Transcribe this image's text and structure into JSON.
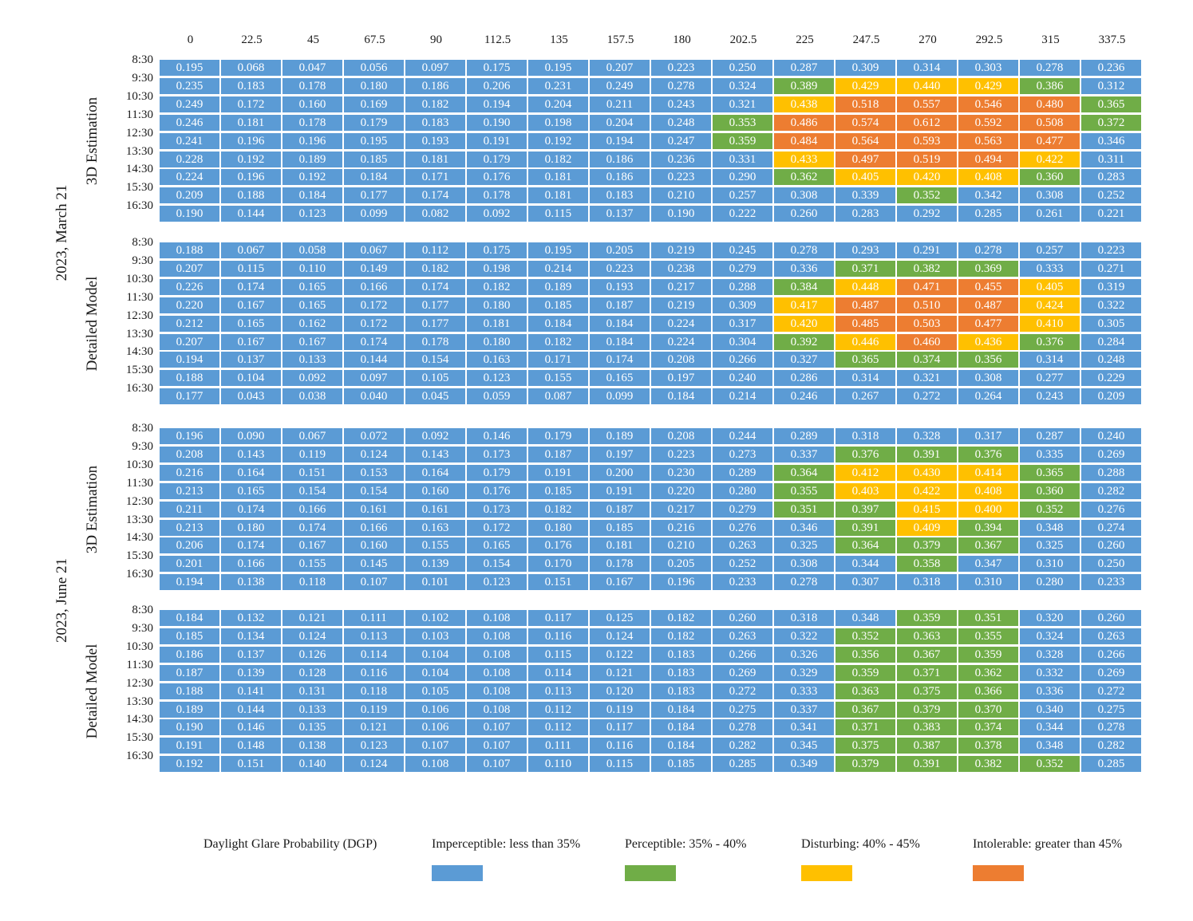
{
  "chart_data": {
    "type": "heatmap",
    "columns": [
      "0",
      "22.5",
      "45",
      "67.5",
      "90",
      "112.5",
      "135",
      "157.5",
      "180",
      "202.5",
      "225",
      "247.5",
      "270",
      "292.5",
      "315",
      "337.5"
    ],
    "rows": [
      "8:30",
      "9:30",
      "10:30",
      "11:30",
      "12:30",
      "13:30",
      "14:30",
      "15:30",
      "16:30"
    ],
    "dates": [
      "2023, March 21",
      "2023, June 21"
    ],
    "blocks": [
      {
        "date": "2023, March 21",
        "method": "3D Estimation",
        "values": [
          [
            "0.195",
            "0.068",
            "0.047",
            "0.056",
            "0.097",
            "0.175",
            "0.195",
            "0.207",
            "0.223",
            "0.250",
            "0.287",
            "0.309",
            "0.314",
            "0.303",
            "0.278",
            "0.236"
          ],
          [
            "0.235",
            "0.183",
            "0.178",
            "0.180",
            "0.186",
            "0.206",
            "0.231",
            "0.249",
            "0.278",
            "0.324",
            "0.389",
            "0.429",
            "0.440",
            "0.429",
            "0.386",
            "0.312"
          ],
          [
            "0.249",
            "0.172",
            "0.160",
            "0.169",
            "0.182",
            "0.194",
            "0.204",
            "0.211",
            "0.243",
            "0.321",
            "0.438",
            "0.518",
            "0.557",
            "0.546",
            "0.480",
            "0.365"
          ],
          [
            "0.246",
            "0.181",
            "0.178",
            "0.179",
            "0.183",
            "0.190",
            "0.198",
            "0.204",
            "0.248",
            "0.353",
            "0.486",
            "0.574",
            "0.612",
            "0.592",
            "0.508",
            "0.372"
          ],
          [
            "0.241",
            "0.196",
            "0.196",
            "0.195",
            "0.193",
            "0.191",
            "0.192",
            "0.194",
            "0.247",
            "0.359",
            "0.484",
            "0.564",
            "0.593",
            "0.563",
            "0.477",
            "0.346"
          ],
          [
            "0.228",
            "0.192",
            "0.189",
            "0.185",
            "0.181",
            "0.179",
            "0.182",
            "0.186",
            "0.236",
            "0.331",
            "0.433",
            "0.497",
            "0.519",
            "0.494",
            "0.422",
            "0.311"
          ],
          [
            "0.224",
            "0.196",
            "0.192",
            "0.184",
            "0.171",
            "0.176",
            "0.181",
            "0.186",
            "0.223",
            "0.290",
            "0.362",
            "0.405",
            "0.420",
            "0.408",
            "0.360",
            "0.283"
          ],
          [
            "0.209",
            "0.188",
            "0.184",
            "0.177",
            "0.174",
            "0.178",
            "0.181",
            "0.183",
            "0.210",
            "0.257",
            "0.308",
            "0.339",
            "0.352",
            "0.342",
            "0.308",
            "0.252"
          ],
          [
            "0.190",
            "0.144",
            "0.123",
            "0.099",
            "0.082",
            "0.092",
            "0.115",
            "0.137",
            "0.190",
            "0.222",
            "0.260",
            "0.283",
            "0.292",
            "0.285",
            "0.261",
            "0.221"
          ]
        ]
      },
      {
        "date": "2023, March 21",
        "method": "Detailed Model",
        "values": [
          [
            "0.188",
            "0.067",
            "0.058",
            "0.067",
            "0.112",
            "0.175",
            "0.195",
            "0.205",
            "0.219",
            "0.245",
            "0.278",
            "0.293",
            "0.291",
            "0.278",
            "0.257",
            "0.223"
          ],
          [
            "0.207",
            "0.115",
            "0.110",
            "0.149",
            "0.182",
            "0.198",
            "0.214",
            "0.223",
            "0.238",
            "0.279",
            "0.336",
            "0.371",
            "0.382",
            "0.369",
            "0.333",
            "0.271"
          ],
          [
            "0.226",
            "0.174",
            "0.165",
            "0.166",
            "0.174",
            "0.182",
            "0.189",
            "0.193",
            "0.217",
            "0.288",
            "0.384",
            "0.448",
            "0.471",
            "0.455",
            "0.405",
            "0.319"
          ],
          [
            "0.220",
            "0.167",
            "0.165",
            "0.172",
            "0.177",
            "0.180",
            "0.185",
            "0.187",
            "0.219",
            "0.309",
            "0.417",
            "0.487",
            "0.510",
            "0.487",
            "0.424",
            "0.322"
          ],
          [
            "0.212",
            "0.165",
            "0.162",
            "0.172",
            "0.177",
            "0.181",
            "0.184",
            "0.184",
            "0.224",
            "0.317",
            "0.420",
            "0.485",
            "0.503",
            "0.477",
            "0.410",
            "0.305"
          ],
          [
            "0.207",
            "0.167",
            "0.167",
            "0.174",
            "0.178",
            "0.180",
            "0.182",
            "0.184",
            "0.224",
            "0.304",
            "0.392",
            "0.446",
            "0.460",
            "0.436",
            "0.376",
            "0.284"
          ],
          [
            "0.194",
            "0.137",
            "0.133",
            "0.144",
            "0.154",
            "0.163",
            "0.171",
            "0.174",
            "0.208",
            "0.266",
            "0.327",
            "0.365",
            "0.374",
            "0.356",
            "0.314",
            "0.248"
          ],
          [
            "0.188",
            "0.104",
            "0.092",
            "0.097",
            "0.105",
            "0.123",
            "0.155",
            "0.165",
            "0.197",
            "0.240",
            "0.286",
            "0.314",
            "0.321",
            "0.308",
            "0.277",
            "0.229"
          ],
          [
            "0.177",
            "0.043",
            "0.038",
            "0.040",
            "0.045",
            "0.059",
            "0.087",
            "0.099",
            "0.184",
            "0.214",
            "0.246",
            "0.267",
            "0.272",
            "0.264",
            "0.243",
            "0.209"
          ]
        ]
      },
      {
        "date": "2023, June 21",
        "method": "3D Estimation",
        "values": [
          [
            "0.196",
            "0.090",
            "0.067",
            "0.072",
            "0.092",
            "0.146",
            "0.179",
            "0.189",
            "0.208",
            "0.244",
            "0.289",
            "0.318",
            "0.328",
            "0.317",
            "0.287",
            "0.240"
          ],
          [
            "0.208",
            "0.143",
            "0.119",
            "0.124",
            "0.143",
            "0.173",
            "0.187",
            "0.197",
            "0.223",
            "0.273",
            "0.337",
            "0.376",
            "0.391",
            "0.376",
            "0.335",
            "0.269"
          ],
          [
            "0.216",
            "0.164",
            "0.151",
            "0.153",
            "0.164",
            "0.179",
            "0.191",
            "0.200",
            "0.230",
            "0.289",
            "0.364",
            "0.412",
            "0.430",
            "0.414",
            "0.365",
            "0.288"
          ],
          [
            "0.213",
            "0.165",
            "0.154",
            "0.154",
            "0.160",
            "0.176",
            "0.185",
            "0.191",
            "0.220",
            "0.280",
            "0.355",
            "0.403",
            "0.422",
            "0.408",
            "0.360",
            "0.282"
          ],
          [
            "0.211",
            "0.174",
            "0.166",
            "0.161",
            "0.161",
            "0.173",
            "0.182",
            "0.187",
            "0.217",
            "0.279",
            "0.351",
            "0.397",
            "0.415",
            "0.400",
            "0.352",
            "0.276"
          ],
          [
            "0.213",
            "0.180",
            "0.174",
            "0.166",
            "0.163",
            "0.172",
            "0.180",
            "0.185",
            "0.216",
            "0.276",
            "0.346",
            "0.391",
            "0.409",
            "0.394",
            "0.348",
            "0.274"
          ],
          [
            "0.206",
            "0.174",
            "0.167",
            "0.160",
            "0.155",
            "0.165",
            "0.176",
            "0.181",
            "0.210",
            "0.263",
            "0.325",
            "0.364",
            "0.379",
            "0.367",
            "0.325",
            "0.260"
          ],
          [
            "0.201",
            "0.166",
            "0.155",
            "0.145",
            "0.139",
            "0.154",
            "0.170",
            "0.178",
            "0.205",
            "0.252",
            "0.308",
            "0.344",
            "0.358",
            "0.347",
            "0.310",
            "0.250"
          ],
          [
            "0.194",
            "0.138",
            "0.118",
            "0.107",
            "0.101",
            "0.123",
            "0.151",
            "0.167",
            "0.196",
            "0.233",
            "0.278",
            "0.307",
            "0.318",
            "0.310",
            "0.280",
            "0.233"
          ]
        ]
      },
      {
        "date": "2023, June 21",
        "method": "Detailed Model",
        "values": [
          [
            "0.184",
            "0.132",
            "0.121",
            "0.111",
            "0.102",
            "0.108",
            "0.117",
            "0.125",
            "0.182",
            "0.260",
            "0.318",
            "0.348",
            "0.359",
            "0.351",
            "0.320",
            "0.260"
          ],
          [
            "0.185",
            "0.134",
            "0.124",
            "0.113",
            "0.103",
            "0.108",
            "0.116",
            "0.124",
            "0.182",
            "0.263",
            "0.322",
            "0.352",
            "0.363",
            "0.355",
            "0.324",
            "0.263"
          ],
          [
            "0.186",
            "0.137",
            "0.126",
            "0.114",
            "0.104",
            "0.108",
            "0.115",
            "0.122",
            "0.183",
            "0.266",
            "0.326",
            "0.356",
            "0.367",
            "0.359",
            "0.328",
            "0.266"
          ],
          [
            "0.187",
            "0.139",
            "0.128",
            "0.116",
            "0.104",
            "0.108",
            "0.114",
            "0.121",
            "0.183",
            "0.269",
            "0.329",
            "0.359",
            "0.371",
            "0.362",
            "0.332",
            "0.269"
          ],
          [
            "0.188",
            "0.141",
            "0.131",
            "0.118",
            "0.105",
            "0.108",
            "0.113",
            "0.120",
            "0.183",
            "0.272",
            "0.333",
            "0.363",
            "0.375",
            "0.366",
            "0.336",
            "0.272"
          ],
          [
            "0.189",
            "0.144",
            "0.133",
            "0.119",
            "0.106",
            "0.108",
            "0.112",
            "0.119",
            "0.184",
            "0.275",
            "0.337",
            "0.367",
            "0.379",
            "0.370",
            "0.340",
            "0.275"
          ],
          [
            "0.190",
            "0.146",
            "0.135",
            "0.121",
            "0.106",
            "0.107",
            "0.112",
            "0.117",
            "0.184",
            "0.278",
            "0.341",
            "0.371",
            "0.383",
            "0.374",
            "0.344",
            "0.278"
          ],
          [
            "0.191",
            "0.148",
            "0.138",
            "0.123",
            "0.107",
            "0.107",
            "0.111",
            "0.116",
            "0.184",
            "0.282",
            "0.345",
            "0.375",
            "0.387",
            "0.378",
            "0.348",
            "0.282"
          ],
          [
            "0.192",
            "0.151",
            "0.140",
            "0.124",
            "0.108",
            "0.107",
            "0.110",
            "0.115",
            "0.185",
            "0.285",
            "0.349",
            "0.379",
            "0.391",
            "0.382",
            "0.352",
            "0.285"
          ]
        ]
      }
    ],
    "legend": {
      "title": "Daylight Glare Probability (DGP)",
      "items": [
        {
          "label": "Imperceptible: less than 35%",
          "color": "#5B9BD5",
          "min": 0.0,
          "max": 0.35
        },
        {
          "label": "Perceptible: 35% - 40%",
          "color": "#70AD47",
          "min": 0.35,
          "max": 0.4
        },
        {
          "label": "Disturbing: 40% - 45%",
          "color": "#FFC000",
          "min": 0.4,
          "max": 0.45
        },
        {
          "label": "Intolerable: greater than 45%",
          "color": "#ED7D31",
          "min": 0.45,
          "max": 1.0
        }
      ]
    }
  }
}
